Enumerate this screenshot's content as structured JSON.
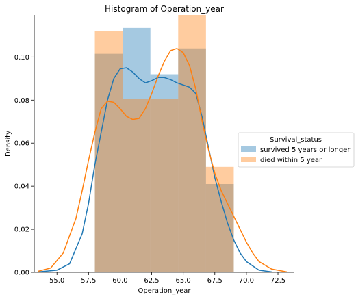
{
  "chart_data": {
    "type": "histogram",
    "title": "Histogram of Operation_year",
    "xlabel": "Operation_year",
    "ylabel": "Density",
    "xlim": [
      53.2,
      73.8
    ],
    "ylim": [
      0,
      0.1195
    ],
    "xticks": [
      55.0,
      57.5,
      60.0,
      62.5,
      65.0,
      67.5,
      70.0,
      72.5
    ],
    "xtick_labels": [
      "55.0",
      "57.5",
      "60.0",
      "62.5",
      "65.0",
      "67.5",
      "70.0",
      "72.5"
    ],
    "yticks": [
      0.0,
      0.02,
      0.04,
      0.06,
      0.08,
      0.1
    ],
    "ytick_labels": [
      "0.00",
      "0.02",
      "0.04",
      "0.06",
      "0.08",
      "0.10"
    ],
    "grid": false,
    "legend": {
      "title": "Survival_status",
      "placement": "right",
      "entries": [
        "survived 5 years or longer",
        "died within 5 year"
      ]
    },
    "series": [
      {
        "name": "survived 5 years or longer",
        "color": "#1f77b4",
        "bins": [
          {
            "x0": 58.0,
            "x1": 60.2,
            "density": 0.1015
          },
          {
            "x0": 60.2,
            "x1": 62.4,
            "density": 0.1135
          },
          {
            "x0": 62.4,
            "x1": 64.6,
            "density": 0.092
          },
          {
            "x0": 64.6,
            "x1": 66.8,
            "density": 0.104
          },
          {
            "x0": 66.8,
            "x1": 69.0,
            "density": 0.041
          }
        ],
        "kde": [
          [
            53.5,
            0.0002
          ],
          [
            55.0,
            0.001
          ],
          [
            56.0,
            0.004
          ],
          [
            57.0,
            0.018
          ],
          [
            57.5,
            0.032
          ],
          [
            58.0,
            0.05
          ],
          [
            58.5,
            0.065
          ],
          [
            59.0,
            0.08
          ],
          [
            59.5,
            0.09
          ],
          [
            60.0,
            0.0945
          ],
          [
            60.5,
            0.095
          ],
          [
            61.0,
            0.093
          ],
          [
            61.5,
            0.09
          ],
          [
            62.0,
            0.088
          ],
          [
            62.5,
            0.089
          ],
          [
            63.0,
            0.0905
          ],
          [
            63.5,
            0.0905
          ],
          [
            64.0,
            0.0895
          ],
          [
            64.5,
            0.088
          ],
          [
            65.0,
            0.087
          ],
          [
            65.5,
            0.086
          ],
          [
            66.0,
            0.083
          ],
          [
            66.5,
            0.072
          ],
          [
            67.0,
            0.058
          ],
          [
            67.5,
            0.044
          ],
          [
            68.0,
            0.033
          ],
          [
            68.5,
            0.023
          ],
          [
            69.0,
            0.015
          ],
          [
            69.5,
            0.009
          ],
          [
            70.0,
            0.005
          ],
          [
            71.0,
            0.001
          ],
          [
            72.0,
            0.0002
          ]
        ]
      },
      {
        "name": "died within 5 year",
        "color": "#ff7f0e",
        "bins": [
          {
            "x0": 58.0,
            "x1": 60.2,
            "density": 0.112
          },
          {
            "x0": 60.2,
            "x1": 62.4,
            "density": 0.0805
          },
          {
            "x0": 62.4,
            "x1": 64.6,
            "density": 0.0805
          },
          {
            "x0": 64.6,
            "x1": 66.8,
            "density": 0.1195
          },
          {
            "x0": 66.8,
            "x1": 69.0,
            "density": 0.049
          }
        ],
        "kde": [
          [
            53.5,
            0.0005
          ],
          [
            54.5,
            0.002
          ],
          [
            55.5,
            0.009
          ],
          [
            56.5,
            0.025
          ],
          [
            57.0,
            0.038
          ],
          [
            57.5,
            0.052
          ],
          [
            58.0,
            0.065
          ],
          [
            58.5,
            0.076
          ],
          [
            59.0,
            0.0795
          ],
          [
            59.5,
            0.079
          ],
          [
            60.0,
            0.076
          ],
          [
            60.5,
            0.0725
          ],
          [
            61.0,
            0.071
          ],
          [
            61.5,
            0.0715
          ],
          [
            62.0,
            0.076
          ],
          [
            62.5,
            0.083
          ],
          [
            63.0,
            0.091
          ],
          [
            63.5,
            0.098
          ],
          [
            64.0,
            0.103
          ],
          [
            64.5,
            0.104
          ],
          [
            65.0,
            0.102
          ],
          [
            65.5,
            0.096
          ],
          [
            66.0,
            0.085
          ],
          [
            66.5,
            0.07
          ],
          [
            67.0,
            0.057
          ],
          [
            67.5,
            0.046
          ],
          [
            68.0,
            0.038
          ],
          [
            68.5,
            0.032
          ],
          [
            69.0,
            0.026
          ],
          [
            69.5,
            0.02
          ],
          [
            70.0,
            0.014
          ],
          [
            70.5,
            0.009
          ],
          [
            71.0,
            0.005
          ],
          [
            72.0,
            0.0015
          ],
          [
            73.2,
            0.0002
          ]
        ]
      }
    ]
  }
}
